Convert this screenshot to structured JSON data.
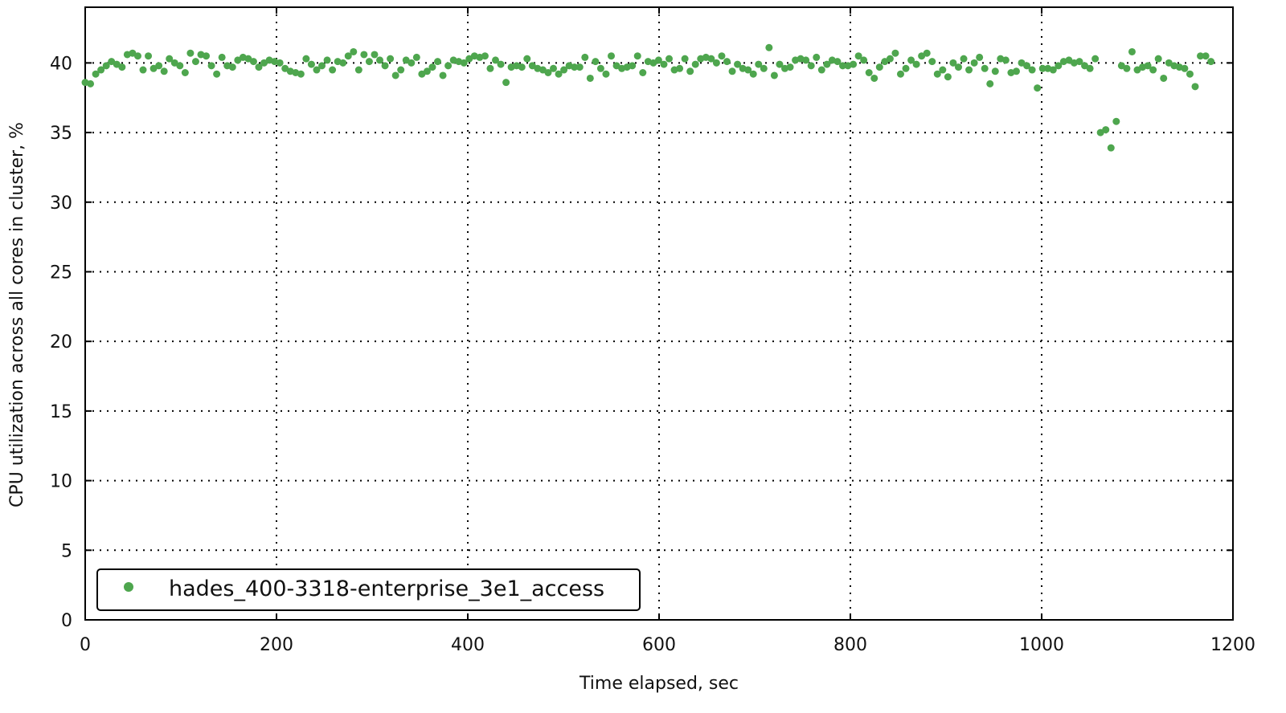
{
  "chart_data": {
    "type": "scatter",
    "x_label": "Time elapsed, sec",
    "y_label": "CPU utilization across all cores in cluster, %",
    "xlim": [
      0,
      1200
    ],
    "ylim": [
      0,
      44
    ],
    "xticks": [
      0,
      200,
      400,
      600,
      800,
      1000,
      1200
    ],
    "yticks": [
      0,
      5,
      10,
      15,
      20,
      25,
      30,
      35,
      40
    ],
    "grid": true,
    "legend": "lower left",
    "series": [
      {
        "name": "hades_400-3318-enterprise_3e1_access",
        "color": "#4ea64e",
        "x": [
          0,
          5.5,
          11,
          16.5,
          22,
          27.5,
          33,
          38.5,
          44,
          49.5,
          55,
          60.5,
          66,
          71.5,
          77,
          82.5,
          88,
          93.5,
          99,
          104.5,
          110,
          115.5,
          121,
          126.5,
          132,
          137.5,
          143,
          148.5,
          154,
          159.5,
          165,
          170.5,
          176,
          181.5,
          187,
          192.5,
          198,
          203.5,
          209,
          214.5,
          220,
          225.5,
          231,
          236.5,
          242,
          247.5,
          253,
          258.5,
          264,
          269.5,
          275,
          280.5,
          286,
          291.5,
          297,
          302.5,
          308,
          313.5,
          319,
          324.5,
          330,
          335.5,
          341,
          346.5,
          352,
          357.5,
          363,
          368.5,
          374,
          379.5,
          385,
          390.5,
          396,
          401.5,
          407,
          412.5,
          418,
          423.5,
          429,
          434.5,
          440,
          445.5,
          451,
          456.5,
          462,
          467.5,
          473,
          478.5,
          484,
          489.5,
          495,
          500.5,
          506,
          511.5,
          517,
          522.5,
          528,
          533.5,
          539,
          544.5,
          550,
          555.5,
          561,
          566.5,
          572,
          577.5,
          583,
          588.5,
          594,
          599.5,
          605,
          610.5,
          616,
          621.5,
          627,
          632.5,
          638,
          643.5,
          649,
          654.5,
          660,
          665.5,
          671,
          676.5,
          682,
          687.5,
          693,
          698.5,
          704,
          709.5,
          715,
          720.5,
          726,
          731.5,
          737,
          742.5,
          748,
          753.5,
          759,
          764.5,
          770,
          775.5,
          781,
          786.5,
          792,
          797.5,
          803,
          808.5,
          814,
          819.5,
          825,
          830.5,
          836,
          841.5,
          847,
          852.5,
          858,
          863.5,
          869,
          874.5,
          880,
          885.5,
          891,
          896.5,
          902,
          907.5,
          913,
          918.5,
          924,
          929.5,
          935,
          940.5,
          946,
          951.5,
          957,
          962.5,
          968,
          973.5,
          979,
          984.5,
          990,
          995.5,
          1001,
          1006.5,
          1012,
          1017.5,
          1023,
          1028.5,
          1034,
          1039.5,
          1045,
          1050.5,
          1056,
          1061.5,
          1067,
          1072.5,
          1078,
          1083.5,
          1089,
          1094.5,
          1100,
          1105.5,
          1111,
          1116.5,
          1122,
          1127.5,
          1133,
          1138.5,
          1144,
          1149.5,
          1155,
          1160.5,
          1166,
          1171.5,
          1177
        ],
        "values": [
          38.6,
          38.5,
          39.2,
          39.5,
          39.8,
          40.1,
          39.9,
          39.7,
          40.6,
          40.7,
          40.5,
          39.5,
          40.5,
          39.6,
          39.8,
          39.4,
          40.3,
          40.0,
          39.8,
          39.3,
          40.7,
          40.1,
          40.6,
          40.5,
          39.8,
          39.2,
          40.4,
          39.8,
          39.7,
          40.2,
          40.4,
          40.3,
          40.1,
          39.7,
          40.0,
          40.2,
          40.1,
          40.0,
          39.6,
          39.4,
          39.3,
          39.2,
          40.3,
          39.9,
          39.5,
          39.8,
          40.2,
          39.5,
          40.1,
          40.0,
          40.5,
          40.8,
          39.5,
          40.6,
          40.1,
          40.6,
          40.2,
          39.8,
          40.3,
          39.1,
          39.5,
          40.2,
          40.0,
          40.4,
          39.2,
          39.4,
          39.7,
          40.1,
          39.1,
          39.8,
          40.2,
          40.1,
          40.0,
          40.3,
          40.5,
          40.4,
          40.5,
          39.6,
          40.2,
          39.9,
          38.6,
          39.7,
          39.8,
          39.7,
          40.3,
          39.8,
          39.6,
          39.5,
          39.3,
          39.6,
          39.2,
          39.5,
          39.8,
          39.7,
          39.7,
          40.4,
          38.9,
          40.1,
          39.6,
          39.2,
          40.5,
          39.8,
          39.6,
          39.7,
          39.8,
          40.5,
          39.3,
          40.1,
          40.0,
          40.2,
          39.9,
          40.3,
          39.5,
          39.6,
          40.3,
          39.4,
          39.9,
          40.3,
          40.4,
          40.3,
          40.0,
          40.5,
          40.1,
          39.4,
          39.9,
          39.6,
          39.5,
          39.2,
          39.9,
          39.6,
          41.1,
          39.1,
          39.9,
          39.6,
          39.7,
          40.2,
          40.3,
          40.2,
          39.8,
          40.4,
          39.5,
          39.9,
          40.2,
          40.1,
          39.8,
          39.8,
          39.9,
          40.5,
          40.2,
          39.3,
          38.9,
          39.7,
          40.1,
          40.3,
          40.7,
          39.2,
          39.6,
          40.2,
          39.9,
          40.5,
          40.7,
          40.1,
          39.2,
          39.5,
          39.0,
          40.0,
          39.7,
          40.3,
          39.5,
          40.0,
          40.4,
          39.6,
          38.5,
          39.4,
          40.3,
          40.2,
          39.3,
          39.4,
          40.0,
          39.8,
          39.5,
          38.2,
          39.6,
          39.6,
          39.5,
          39.8,
          40.1,
          40.2,
          40.0,
          40.1,
          39.8,
          39.6,
          40.3,
          35.0,
          35.2,
          33.9,
          35.8,
          39.8,
          39.6,
          40.8,
          39.5,
          39.7,
          39.8,
          39.5,
          40.3,
          38.9,
          40.0,
          39.8,
          39.7,
          39.6,
          39.2,
          38.3,
          40.5,
          40.5,
          40.1
        ]
      }
    ]
  }
}
